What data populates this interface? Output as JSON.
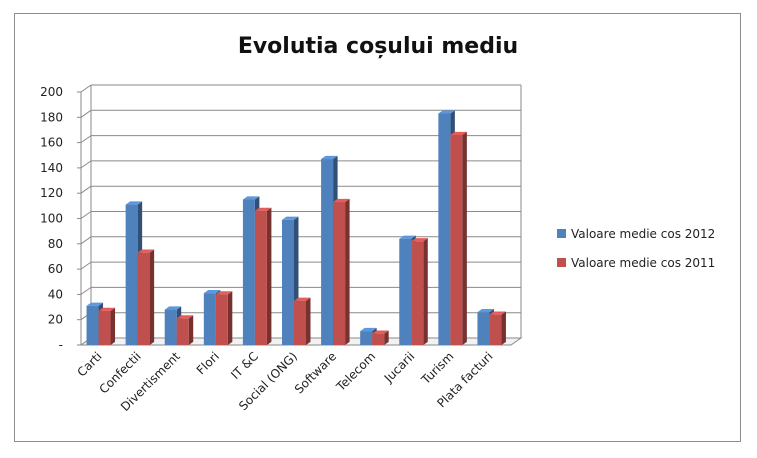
{
  "chart_data": {
    "type": "bar",
    "title": "Evolutia coșului mediu",
    "categories": [
      "Carti",
      "Confectii",
      "Divertisment",
      "Flori",
      "IT &C",
      "Social (ONG)",
      "Software",
      "Telecom",
      "Jucarii",
      "Turism",
      "Plata facturi"
    ],
    "series": [
      {
        "name": "Valoare medie cos 2012",
        "color": "#4f81bd",
        "values": [
          31,
          111,
          28,
          41,
          115,
          99,
          147,
          11,
          84,
          183,
          26
        ]
      },
      {
        "name": "Valoare medie cos 2011",
        "color": "#c0504d",
        "values": [
          27,
          73,
          21,
          40,
          106,
          35,
          113,
          9,
          82,
          166,
          24
        ]
      }
    ],
    "ylim": [
      0,
      200
    ],
    "yticks": [
      "-",
      "20",
      "40",
      "60",
      "80",
      "100",
      "120",
      "140",
      "160",
      "180",
      "200"
    ],
    "grid": true,
    "legend_position": "right"
  }
}
